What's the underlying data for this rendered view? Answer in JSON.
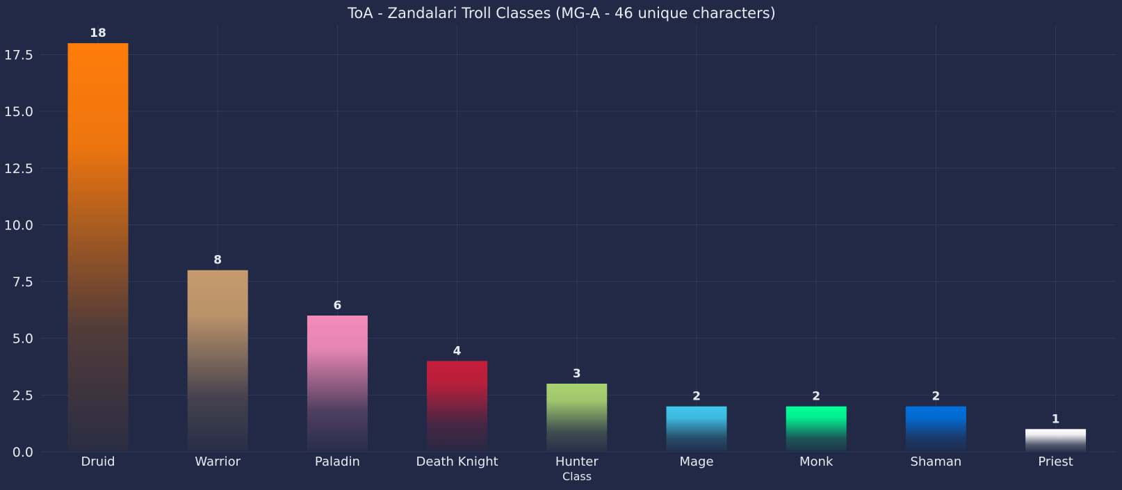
{
  "chart_data": {
    "type": "bar",
    "title": "ToA - Zandalari Troll Classes (MG-A - 46 unique characters)",
    "xlabel": "Class",
    "ylabel": "",
    "categories": [
      "Druid",
      "Warrior",
      "Paladin",
      "Death Knight",
      "Hunter",
      "Mage",
      "Monk",
      "Shaman",
      "Priest"
    ],
    "values": [
      18,
      8,
      6,
      4,
      3,
      2,
      2,
      2,
      1
    ],
    "value_labels": [
      "18",
      "8",
      "6",
      "4",
      "3",
      "2",
      "2",
      "2",
      "1"
    ],
    "colors": [
      "#ff7c0a",
      "#c69b6d",
      "#f48cba",
      "#c41e3a",
      "#aad372",
      "#3fc7eb",
      "#00ff98",
      "#0070dd",
      "#ffffff"
    ],
    "ylim": [
      0,
      18.8
    ],
    "yticks": [
      0,
      2.5,
      5,
      7.5,
      10,
      12.5,
      15,
      17.5
    ],
    "ytick_labels": [
      "0.0",
      "2.5",
      "5.0",
      "7.5",
      "10.0",
      "12.5",
      "15.0",
      "17.5"
    ],
    "grid": true,
    "legend": "none"
  },
  "theme": {
    "background": "#212946",
    "grid": "#2d3a5e",
    "fade_color": "#212946",
    "text": "#e8ebf2"
  }
}
